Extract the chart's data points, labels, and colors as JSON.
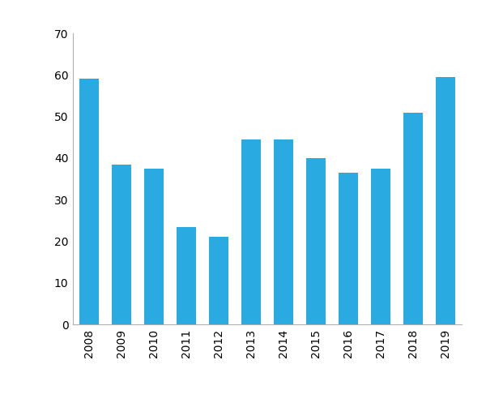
{
  "years": [
    "2008",
    "2009",
    "2010",
    "2011",
    "2012",
    "2013",
    "2014",
    "2015",
    "2016",
    "2017",
    "2018",
    "2019"
  ],
  "values": [
    59,
    38.5,
    37.5,
    23.5,
    21,
    44.5,
    44.5,
    40,
    36.5,
    37.5,
    51,
    59.5
  ],
  "bar_color": "#29abe2",
  "ylim": [
    0,
    70
  ],
  "yticks": [
    0,
    10,
    20,
    30,
    40,
    50,
    60,
    70
  ],
  "background_color": "#ffffff",
  "tick_label_fontsize": 10,
  "bar_width": 0.6,
  "spine_color": "#b0b0b0",
  "figsize": [
    6.0,
    5.13
  ],
  "dpi": 100
}
